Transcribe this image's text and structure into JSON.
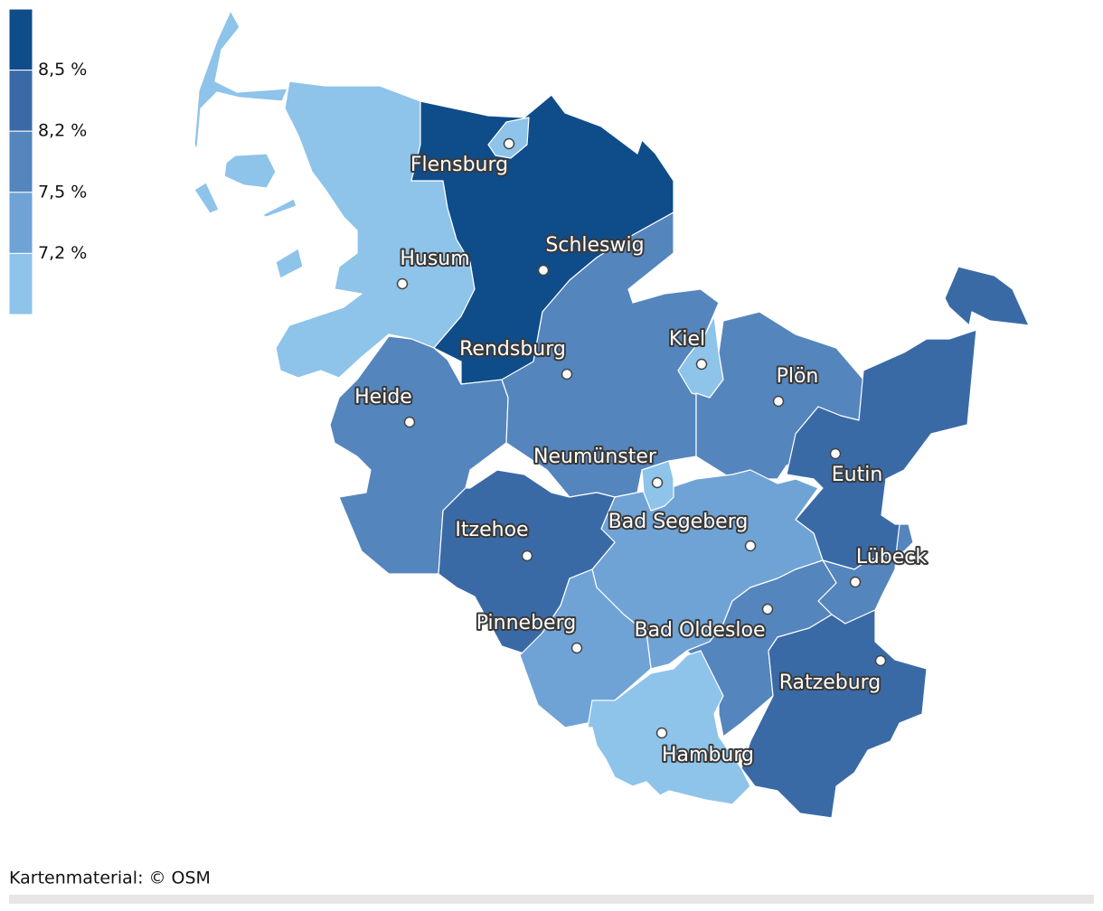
{
  "legend": {
    "colors": [
      "#0f4c8a",
      "#3a6aa6",
      "#5585bd",
      "#6fa3d6",
      "#8ec3ea"
    ],
    "labels": [
      "8,5 %",
      "8,2 %",
      "7,5 %",
      "7,2 %"
    ]
  },
  "cities": [
    "Flensburg",
    "Schleswig",
    "Husum",
    "Rendsburg",
    "Kiel",
    "Plön",
    "Heide",
    "Neumünster",
    "Eutin",
    "Bad Segeberg",
    "Itzehoe",
    "Lübeck",
    "Pinneberg",
    "Bad Oldesloe",
    "Ratzeburg",
    "Hamburg"
  ],
  "attribution": "Kartenmaterial: © OSM"
}
